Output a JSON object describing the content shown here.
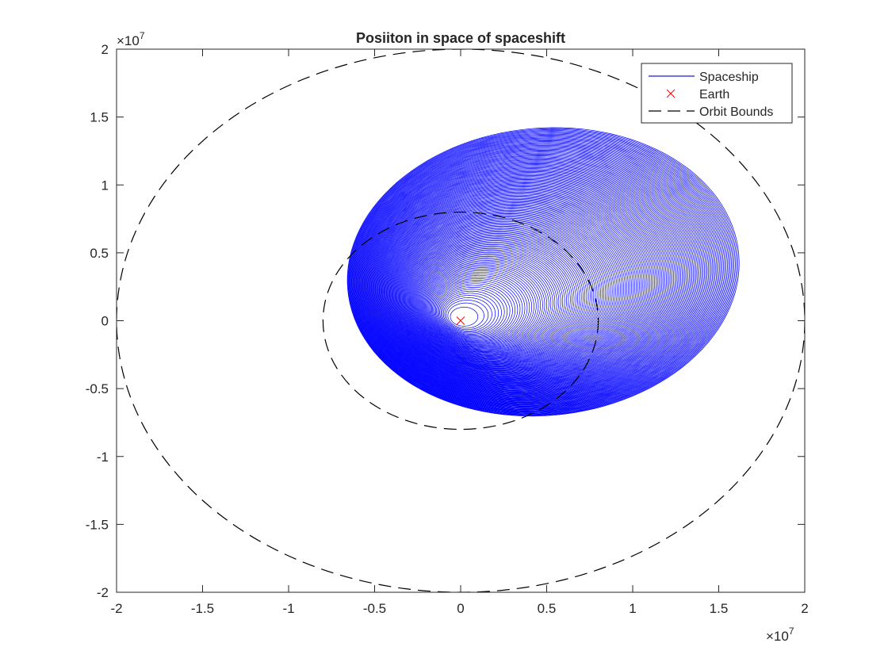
{
  "chart_data": {
    "type": "line",
    "title": "Posiiton in space of spaceshift",
    "xlabel": "",
    "ylabel": "",
    "xlim": [
      -2,
      2
    ],
    "ylim": [
      -2,
      2
    ],
    "x_exponent": "×10",
    "x_exponent_power": "7",
    "y_exponent": "×10",
    "y_exponent_power": "7",
    "x_ticks": [
      -2,
      -1.5,
      -1,
      -0.5,
      0,
      0.5,
      1,
      1.5,
      2
    ],
    "x_tick_labels": [
      "-2",
      "-1.5",
      "-1",
      "-0.5",
      "0",
      "0.5",
      "1",
      "1.5",
      "2"
    ],
    "y_ticks": [
      -2,
      -1.5,
      -1,
      -0.5,
      0,
      0.5,
      1,
      1.5,
      2
    ],
    "y_tick_labels": [
      "-2",
      "-1.5",
      "-1",
      "-0.5",
      "0",
      "0.5",
      "1",
      "1.5",
      "2"
    ],
    "grid": false,
    "legend_position": "top-right",
    "legend": [
      {
        "label": "Spaceship",
        "style": "line",
        "color": "#1f1fd6"
      },
      {
        "label": "Earth",
        "style": "x-marker",
        "color": "#ff0000"
      },
      {
        "label": "Orbit Bounds",
        "style": "dashed",
        "color": "#000000"
      }
    ],
    "series": [
      {
        "name": "Spaceship",
        "kind": "spiral-orbits",
        "color": "#0000ff",
        "orbit_count": 150,
        "start_ellipse": {
          "center": [
            0.02,
            0.03
          ],
          "semi_axes": [
            0.08,
            0.07
          ],
          "rotation_deg": 0
        },
        "end_ellipse": {
          "center": [
            0.48,
            0.36
          ],
          "semi_axes": [
            1.15,
            1.05
          ],
          "rotation_deg": 20
        }
      },
      {
        "name": "Earth",
        "kind": "marker",
        "color": "#ff0000",
        "x": [
          0
        ],
        "y": [
          0
        ]
      },
      {
        "name": "Orbit Bounds",
        "kind": "circle",
        "color": "#000000",
        "center": [
          0,
          0
        ],
        "radius": 2
      },
      {
        "name": "Orbit Bounds",
        "kind": "circle",
        "color": "#000000",
        "center": [
          0,
          0
        ],
        "radius": 0.8
      }
    ]
  }
}
